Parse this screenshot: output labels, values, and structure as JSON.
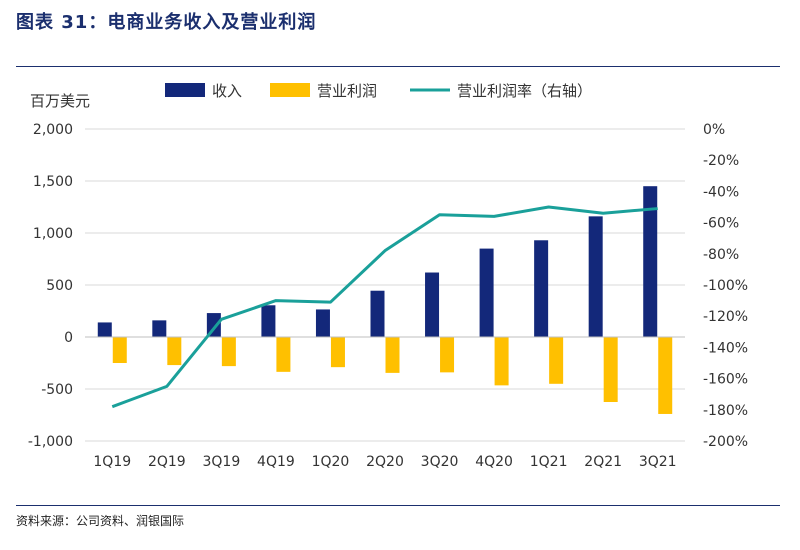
{
  "header": {
    "title": "图表 31：电商业务收入及营业利润"
  },
  "footer": {
    "source": "资料来源：公司资料、润银国际"
  },
  "chart_data": {
    "type": "bar",
    "categories": [
      "1Q19",
      "2Q19",
      "3Q19",
      "4Q19",
      "1Q20",
      "2Q20",
      "3Q20",
      "4Q20",
      "1Q21",
      "2Q21",
      "3Q21"
    ],
    "series": [
      {
        "name": "收入",
        "type": "bar",
        "axis": "left",
        "color": "#13287a",
        "values": [
          140,
          160,
          230,
          305,
          265,
          445,
          620,
          850,
          930,
          1160,
          1450
        ]
      },
      {
        "name": "营业利润",
        "type": "bar",
        "axis": "left",
        "color": "#ffc000",
        "values": [
          -250,
          -270,
          -280,
          -335,
          -290,
          -345,
          -340,
          -465,
          -450,
          -625,
          -740
        ]
      },
      {
        "name": "营业利润率（右轴）",
        "type": "line",
        "axis": "right",
        "color": "#1aa09a",
        "values": [
          -178,
          -165,
          -122,
          -110,
          -111,
          -78,
          -55,
          -56,
          -50,
          -54,
          -51
        ]
      }
    ],
    "ylabel": "百万美元",
    "ylim": [
      -1000,
      2000
    ],
    "yticks": [
      -1000,
      -500,
      0,
      500,
      1000,
      1500,
      2000
    ],
    "ytick_labels": [
      "-1,000",
      "-500",
      "0",
      "500",
      "1,000",
      "1,500",
      "2,000"
    ],
    "y2lim": [
      -200,
      0
    ],
    "y2ticks": [
      -200,
      -180,
      -160,
      -140,
      -120,
      -100,
      -80,
      -60,
      -40,
      -20,
      0
    ],
    "y2tick_labels": [
      "-200%",
      "-180%",
      "-160%",
      "-140%",
      "-120%",
      "-100%",
      "-80%",
      "-60%",
      "-40%",
      "-20%",
      "0%"
    ],
    "grid": true,
    "legend": "top"
  }
}
